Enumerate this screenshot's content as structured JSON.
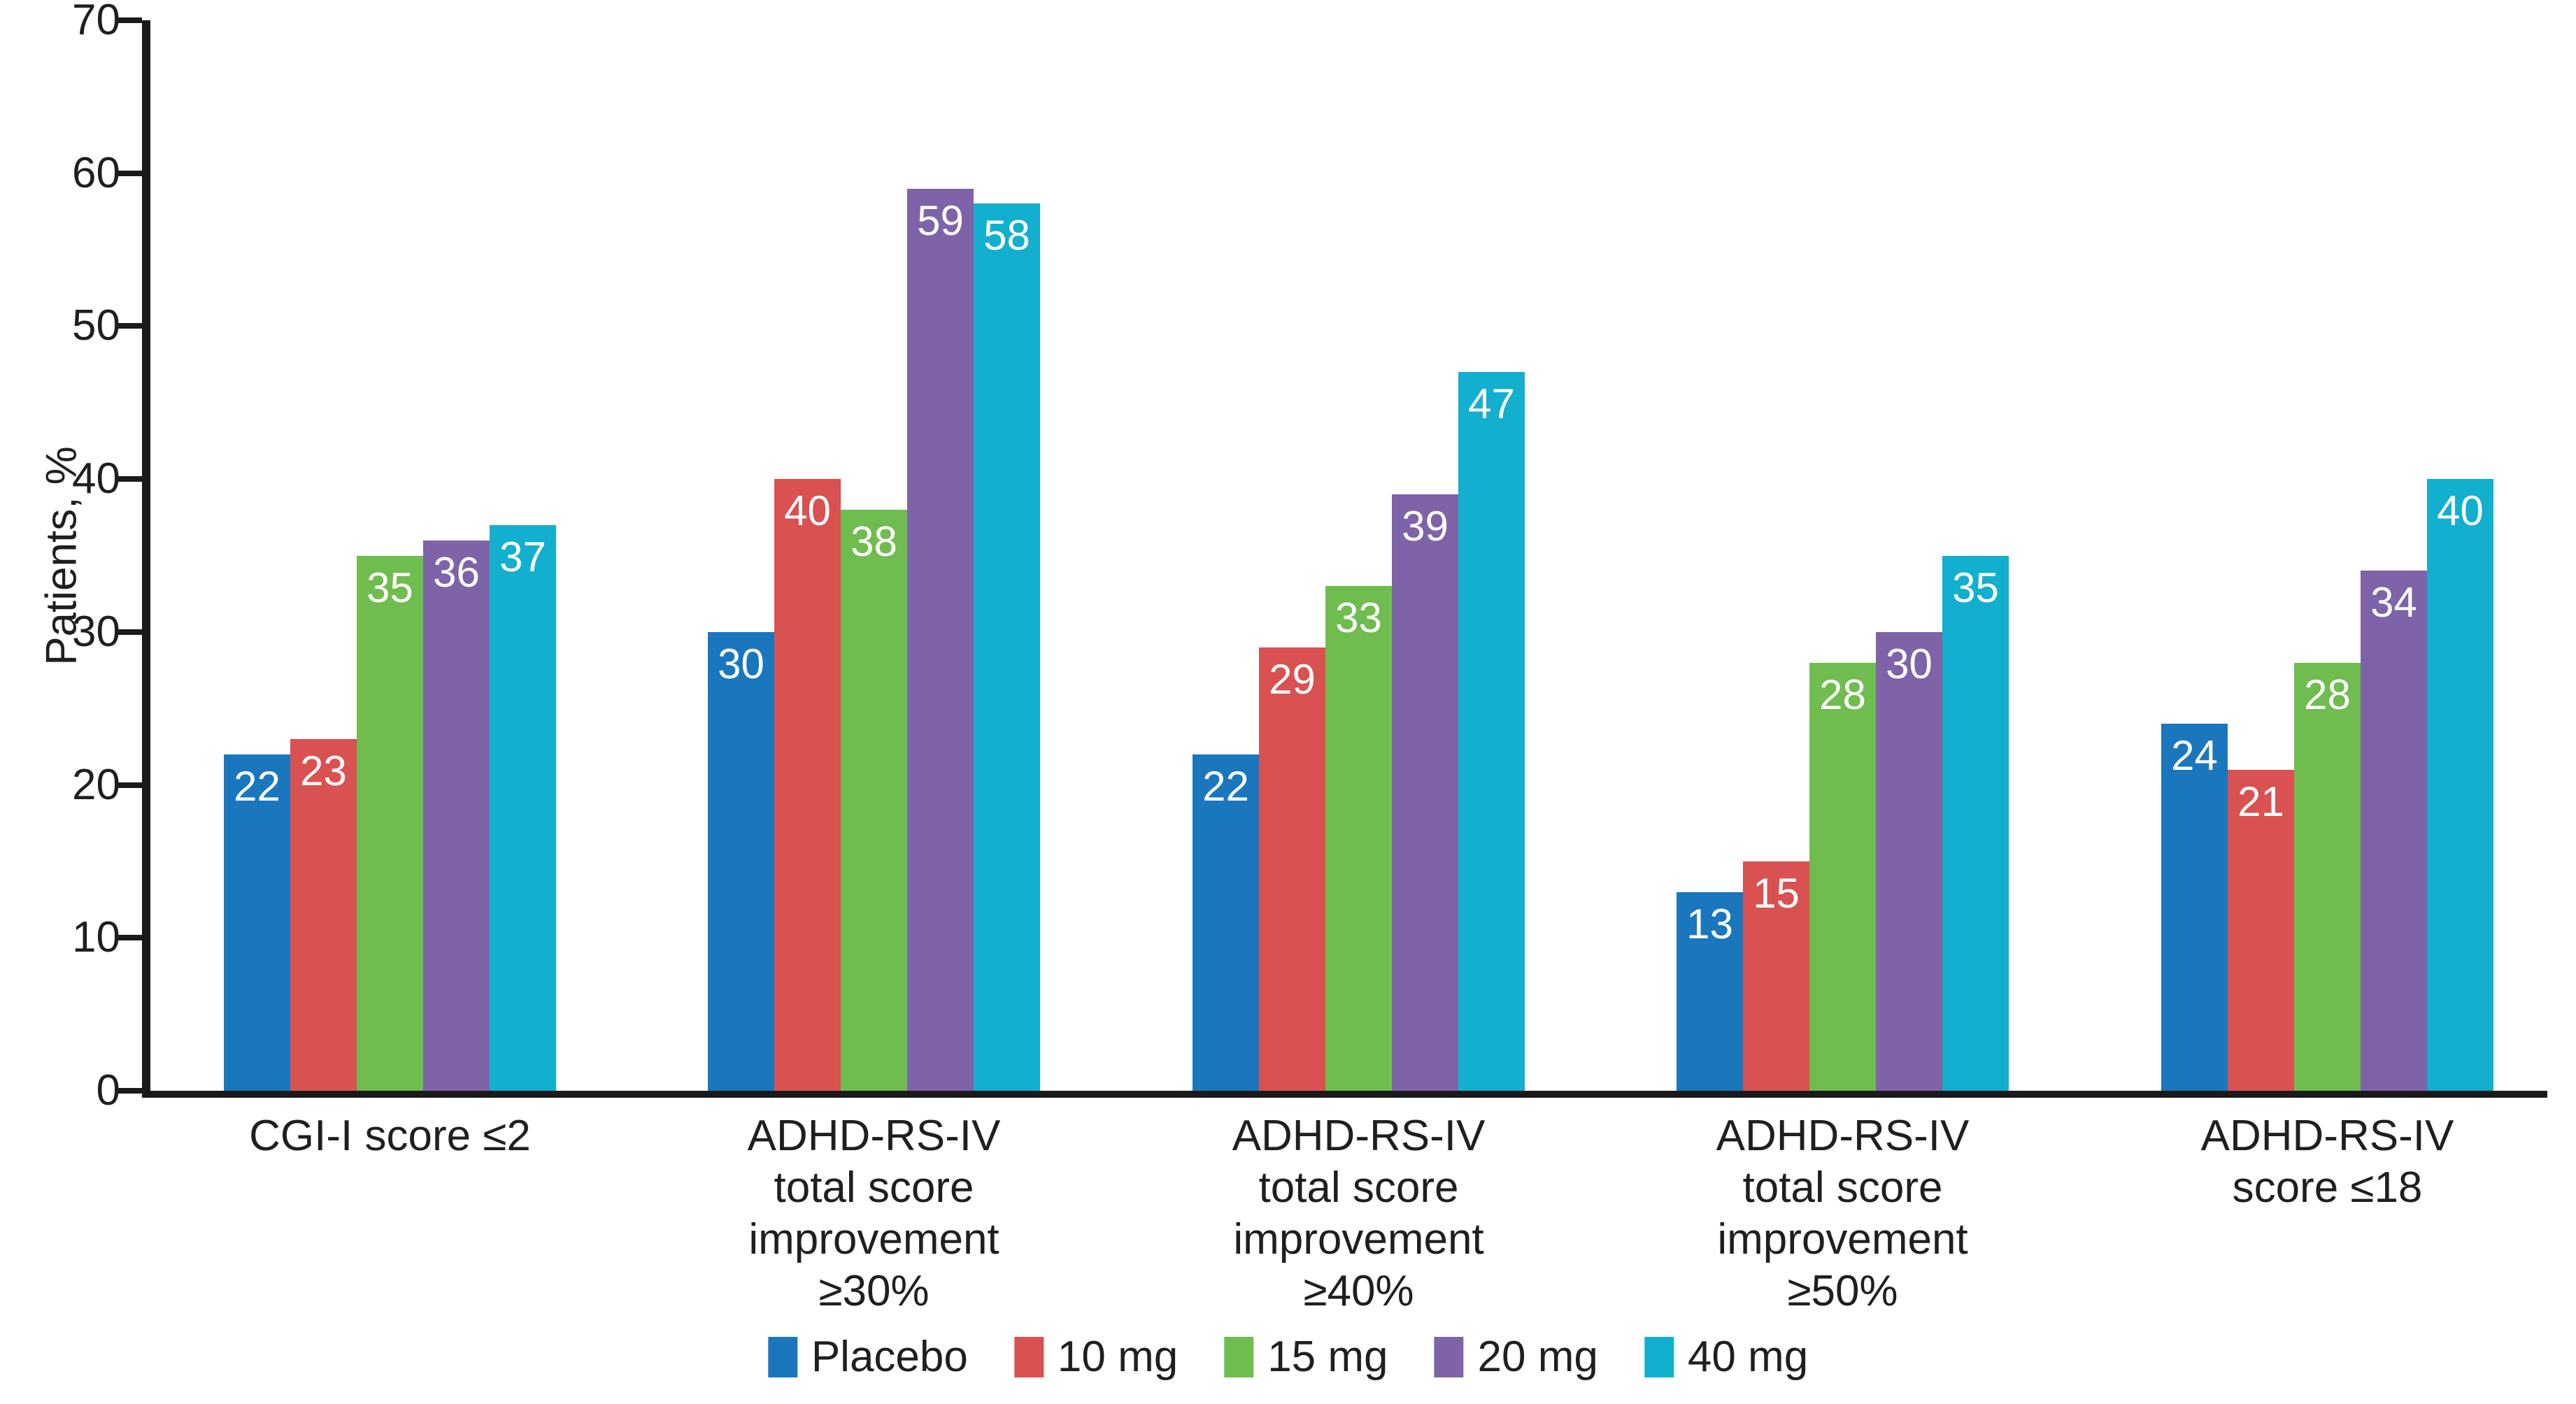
{
  "chart_data": {
    "type": "bar",
    "title": "",
    "ylabel": "Patients, %",
    "xlabel": "",
    "ylim": [
      0,
      70
    ],
    "yticks": [
      0,
      10,
      20,
      30,
      40,
      50,
      60,
      70
    ],
    "grid": false,
    "legend_position": "bottom",
    "value_labels": "white, inside top of each bar",
    "categories": [
      "CGI-I score ≤2",
      "ADHD-RS-IV\ntotal score\nimprovement\n≥30%",
      "ADHD-RS-IV\ntotal score\nimprovement\n≥40%",
      "ADHD-RS-IV\ntotal score\nimprovement\n≥50%",
      "ADHD-RS-IV\nscore ≤18"
    ],
    "series": [
      {
        "name": "Placebo",
        "color": "#1a77be",
        "values": [
          22,
          30,
          22,
          13,
          24
        ]
      },
      {
        "name": "10 mg",
        "color": "#d95150",
        "values": [
          23,
          40,
          29,
          15,
          21
        ]
      },
      {
        "name": "15 mg",
        "color": "#6ebd4e",
        "values": [
          35,
          38,
          33,
          28,
          28
        ]
      },
      {
        "name": "20 mg",
        "color": "#7e63a9",
        "values": [
          36,
          59,
          39,
          30,
          34
        ]
      },
      {
        "name": "40 mg",
        "color": "#12afce",
        "values": [
          37,
          58,
          47,
          35,
          40
        ]
      }
    ],
    "axis_color": "#1a1a1a",
    "text_color": "#1f1f1f"
  }
}
